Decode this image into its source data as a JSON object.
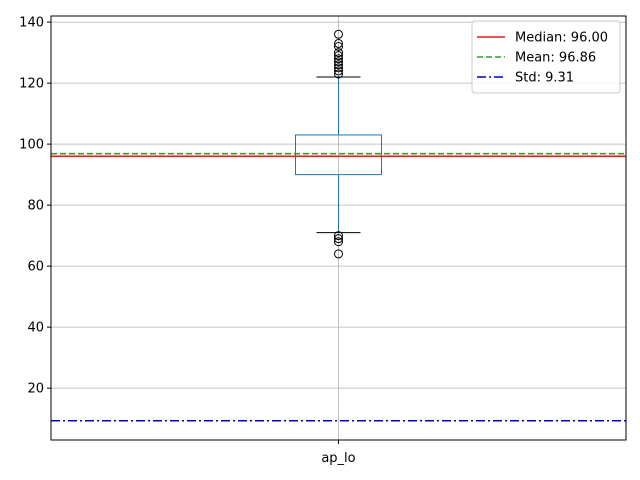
{
  "chart_data": {
    "type": "box",
    "categories": [
      "ap_lo"
    ],
    "box": {
      "q1": 90,
      "median": 96,
      "q3": 103,
      "whisker_low": 71,
      "whisker_high": 122,
      "outliers_high": [
        123,
        124,
        125,
        126,
        127,
        128,
        129,
        130,
        132,
        133,
        136
      ],
      "outliers_low": [
        68,
        69,
        70,
        64
      ]
    },
    "reference_lines": [
      {
        "label": "Median: 96.00",
        "value": 96.0,
        "color": "#e41a1c",
        "style": "solid"
      },
      {
        "label": "Mean: 96.86",
        "value": 96.86,
        "color": "#2ca02c",
        "style": "dashed"
      },
      {
        "label": "Std: 9.31",
        "value": 9.31,
        "color": "#0000cc",
        "style": "dashdot"
      }
    ],
    "yticks": [
      "20",
      "40",
      "60",
      "80",
      "100",
      "120",
      "140"
    ],
    "ylim": [
      3,
      142
    ],
    "grid": true,
    "legend_position": "top-right",
    "colors": {
      "box": "#1f77b4",
      "median_line": "#2ca02c",
      "whisker": "#000000",
      "grid": "#b0b0b0"
    }
  }
}
